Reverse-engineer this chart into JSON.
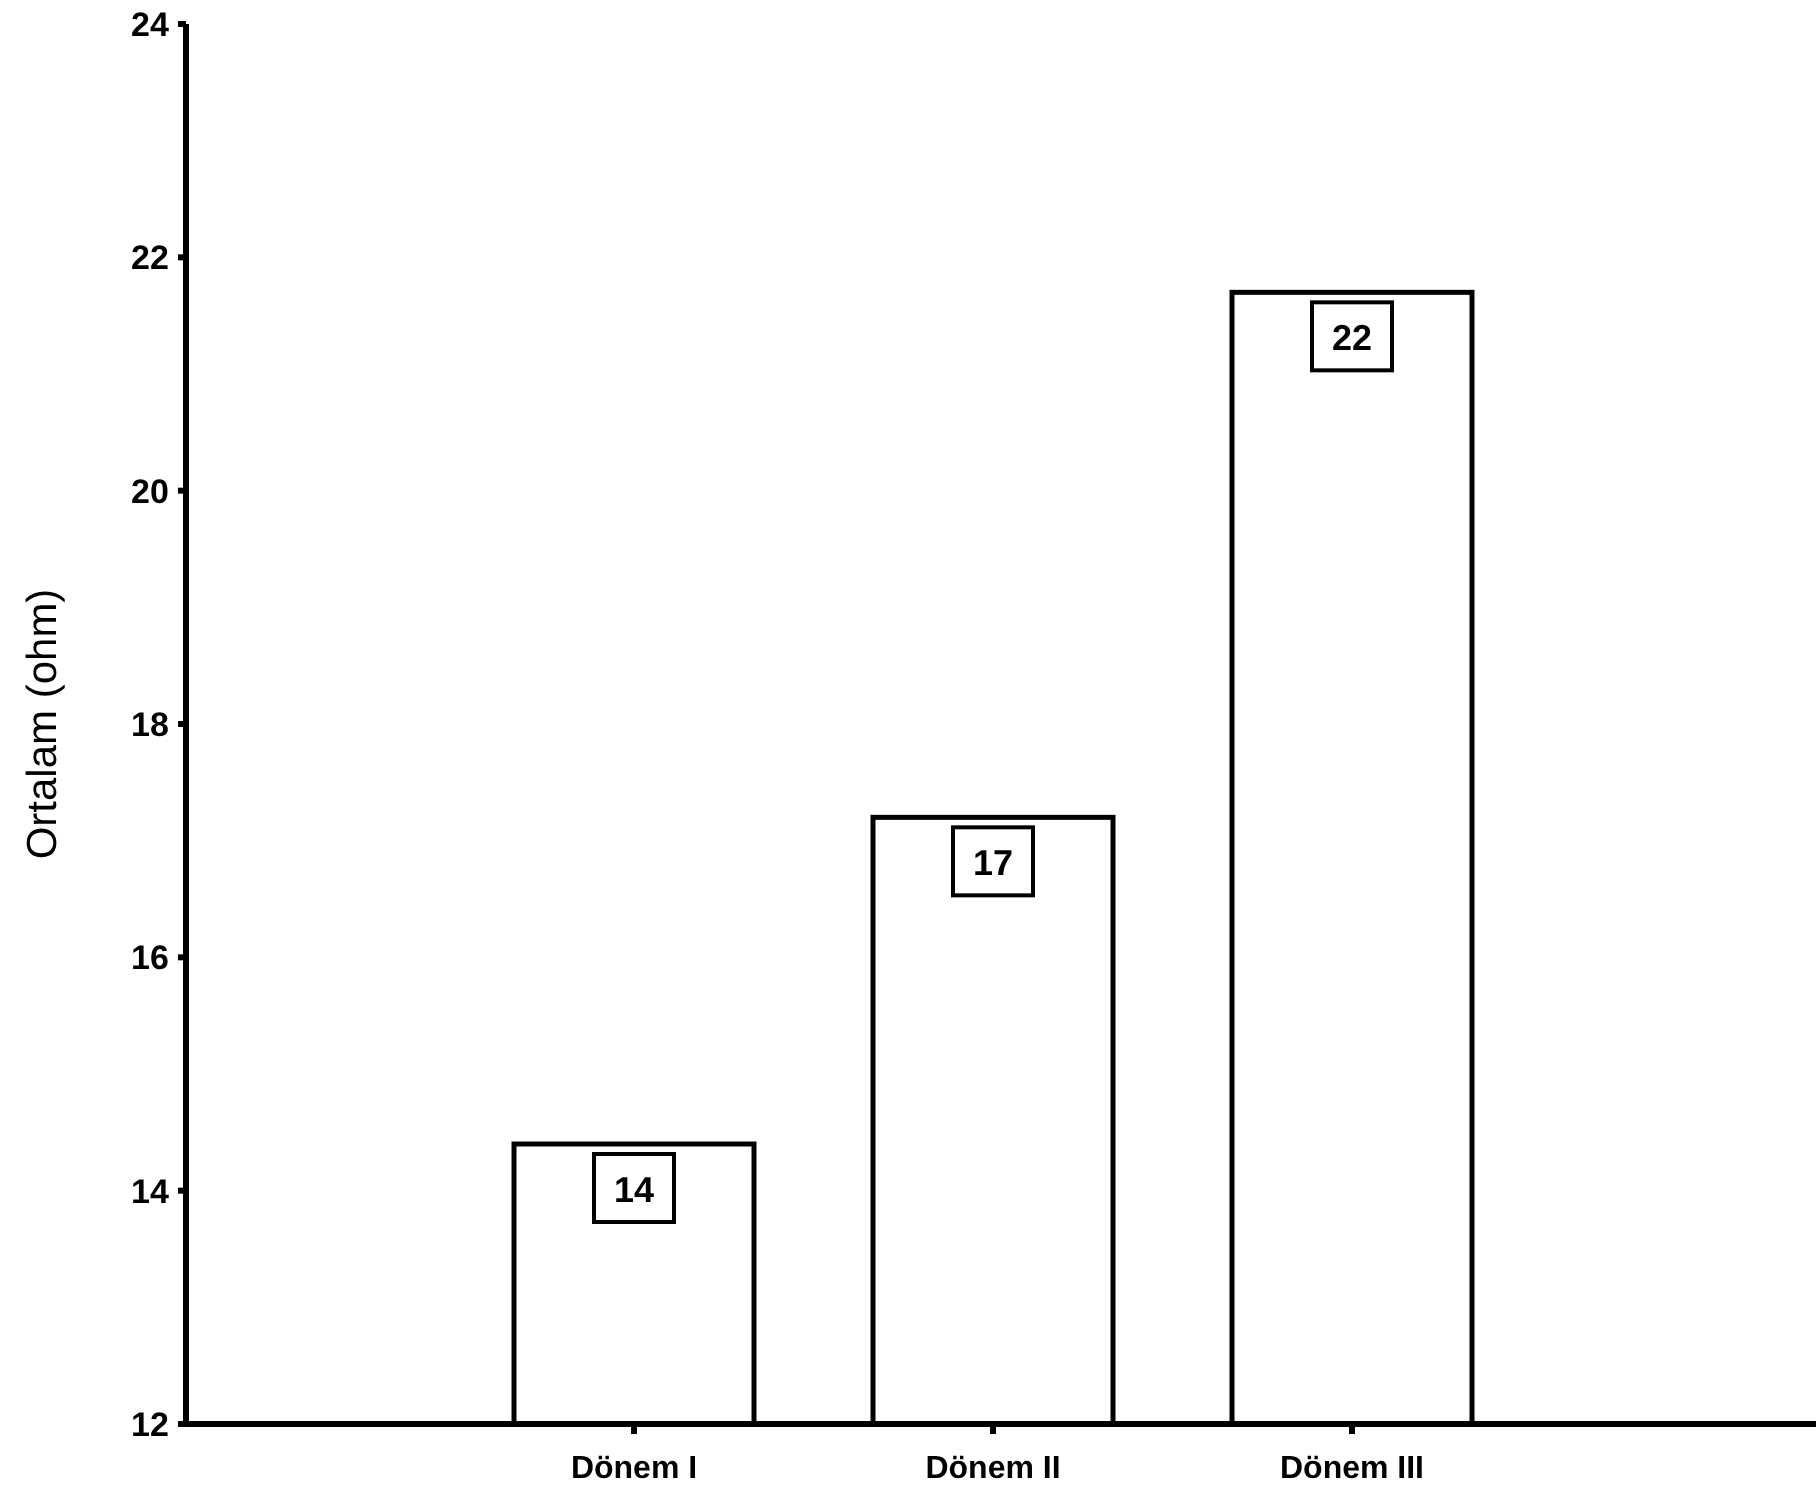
{
  "chart_data": {
    "type": "bar",
    "ylabel": "Ortalam (ohm)",
    "categories": [
      "Dönem I",
      "Dönem II",
      "Dönem III"
    ],
    "values": [
      14.4,
      17.2,
      21.7
    ],
    "value_labels": [
      "14",
      "17",
      "22"
    ],
    "color": "#ffffff",
    "ylim": [
      12,
      24
    ],
    "yticks": [
      12,
      14,
      16,
      18,
      20,
      22,
      24
    ]
  }
}
